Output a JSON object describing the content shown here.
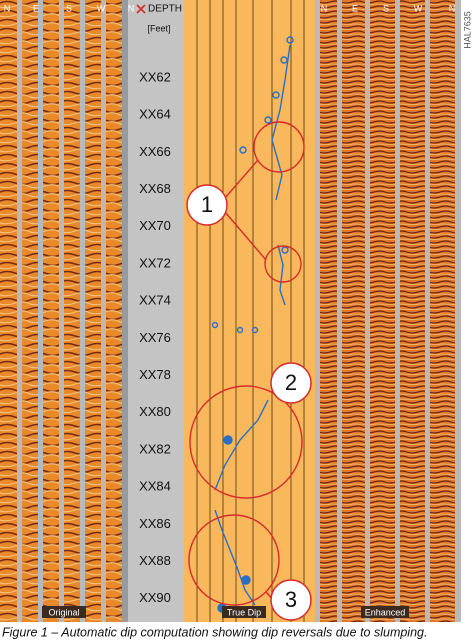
{
  "header": {
    "left_compass": [
      "N",
      "E",
      "S",
      "W",
      "N"
    ],
    "depth_title": "DEPTH",
    "depth_unit": "[Feet]",
    "right_compass": [
      "N",
      "E",
      "S",
      "W",
      "N"
    ],
    "figure_id": "HAL7635"
  },
  "depth_labels": [
    "XX62",
    "XX64",
    "XX66",
    "XX68",
    "XX70",
    "XX72",
    "XX74",
    "XX76",
    "XX78",
    "XX80",
    "XX82",
    "XX84",
    "XX86",
    "XX88",
    "XX90"
  ],
  "markers": [
    "1",
    "2",
    "3"
  ],
  "panel_labels": {
    "original": "Original",
    "true_dip": "True Dip",
    "enhanced": "Enhanced"
  },
  "caption": "Figure 1 – Automatic dip computation showing dip reversals due to slumping."
}
